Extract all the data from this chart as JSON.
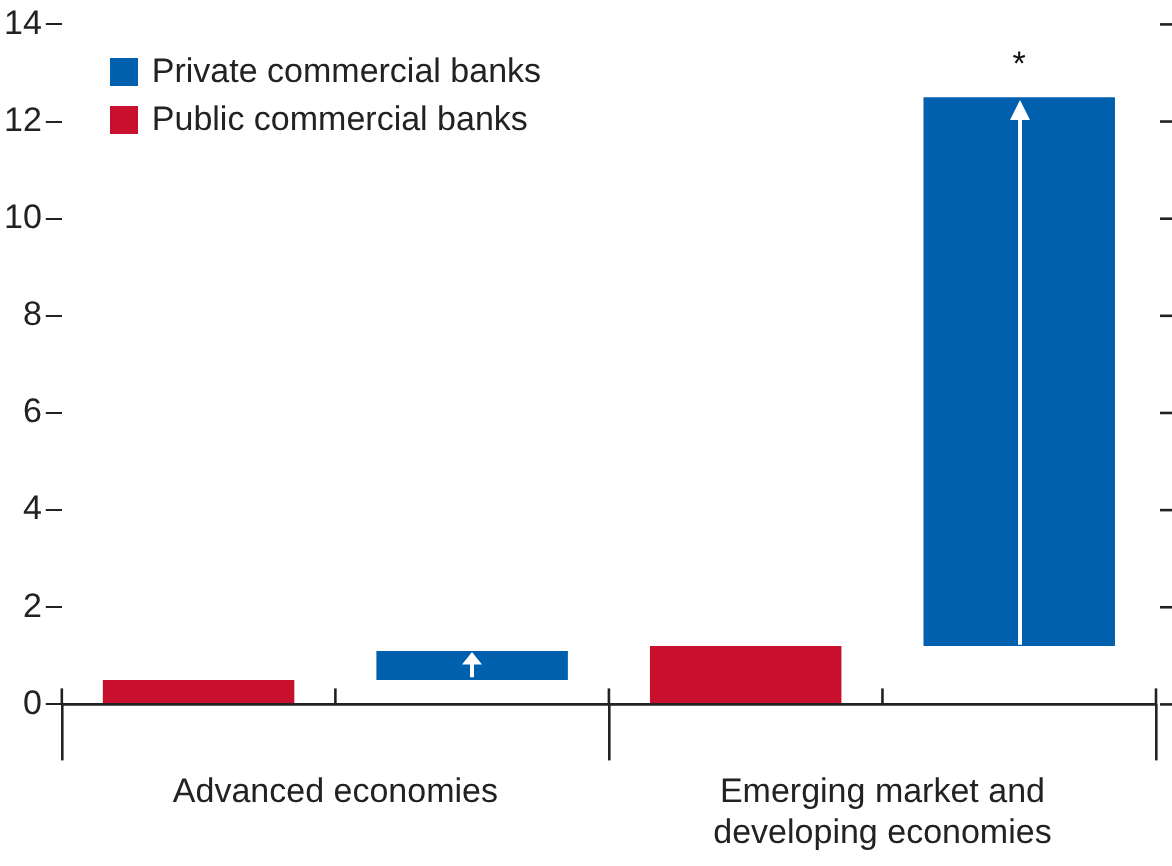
{
  "chart_data": {
    "type": "bar",
    "categories": [
      "Advanced economies",
      "Emerging market and developing economies"
    ],
    "series": [
      {
        "name": "Public commercial banks",
        "color": "#c8102e",
        "values": [
          0.5,
          1.2
        ]
      },
      {
        "name": "Private commercial banks",
        "color": "#0060ae",
        "values": [
          0.6,
          11.3
        ],
        "base": [
          0.5,
          1.2
        ]
      }
    ],
    "ylim": [
      0,
      14
    ],
    "yticks": [
      0,
      2,
      4,
      6,
      8,
      10,
      12,
      14
    ],
    "legend": "top left",
    "annotations": [
      "*"
    ]
  }
}
